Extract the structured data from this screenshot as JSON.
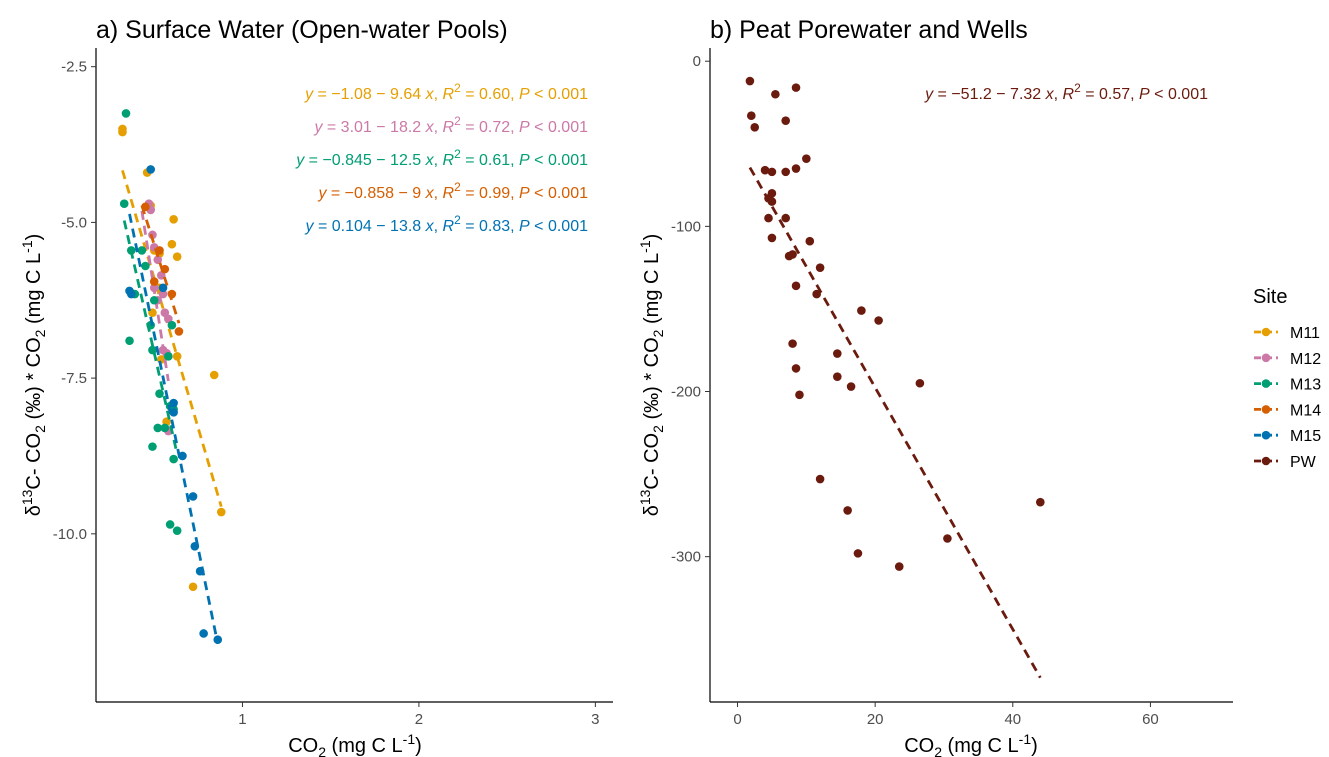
{
  "chart_data": [
    {
      "type": "scatter",
      "panel": "a",
      "title": "a) Surface Water (Open-water Pools)",
      "xlabel": "CO2 (mg C L-1)",
      "ylabel": "δ13C- CO2 (‰) * CO2 (mg C L-1)",
      "xlim": [
        0.17,
        3.1
      ],
      "ylim": [
        -12.7,
        -2.2
      ],
      "xticks": [
        1,
        2,
        3
      ],
      "xtick_labels": [
        "1",
        "2",
        "3"
      ],
      "yticks": [
        -2.5,
        -5.0,
        -7.5,
        -10.0
      ],
      "ytick_labels": [
        "-2.5",
        "-5.0",
        "-7.5",
        "-10.0"
      ],
      "grid": false,
      "series": [
        {
          "name": "M11",
          "color": "#E69F00",
          "points": [
            [
              0.32,
              -3.55
            ],
            [
              0.32,
              -3.5
            ],
            [
              0.46,
              -4.2
            ],
            [
              0.48,
              -4.73
            ],
            [
              0.61,
              -4.95
            ],
            [
              0.5,
              -5.45
            ],
            [
              0.53,
              -5.5
            ],
            [
              0.6,
              -5.35
            ],
            [
              0.63,
              -5.55
            ],
            [
              0.53,
              -6.05
            ],
            [
              0.49,
              -6.45
            ],
            [
              0.58,
              -7.15
            ],
            [
              0.54,
              -7.2
            ],
            [
              0.63,
              -7.15
            ],
            [
              0.84,
              -7.45
            ],
            [
              0.57,
              -8.2
            ],
            [
              0.72,
              -10.85
            ],
            [
              0.88,
              -9.65
            ]
          ],
          "fit": {
            "intercept": -1.08,
            "slope": -9.64,
            "x_range": [
              0.32,
              0.88
            ]
          },
          "equation": {
            "y_text": "y = −1.08 − 9.64 x, ",
            "r2_text": " = 0.60, ",
            "p_text": " < 0.001"
          }
        },
        {
          "name": "M12",
          "color": "#CC79A7",
          "points": [
            [
              0.47,
              -4.7
            ],
            [
              0.48,
              -4.8
            ],
            [
              0.49,
              -5.2
            ],
            [
              0.5,
              -5.4
            ],
            [
              0.52,
              -5.6
            ],
            [
              0.54,
              -5.85
            ],
            [
              0.5,
              -6.05
            ],
            [
              0.55,
              -6.15
            ],
            [
              0.52,
              -6.25
            ],
            [
              0.56,
              -6.45
            ],
            [
              0.58,
              -6.55
            ],
            [
              0.55,
              -7.05
            ],
            [
              0.57,
              -7.1
            ],
            [
              0.58,
              -8.35
            ]
          ],
          "fit": {
            "intercept": 3.01,
            "slope": -18.2,
            "x_range": [
              0.43,
              0.58
            ]
          },
          "equation": {
            "y_text": "y = 3.01 − 18.2 x, ",
            "r2_text": " = 0.72, ",
            "p_text": " < 0.001"
          }
        },
        {
          "name": "M13",
          "color": "#009E73",
          "points": [
            [
              0.34,
              -3.25
            ],
            [
              0.33,
              -4.7
            ],
            [
              0.37,
              -5.45
            ],
            [
              0.43,
              -5.45
            ],
            [
              0.45,
              -5.7
            ],
            [
              0.39,
              -6.15
            ],
            [
              0.36,
              -6.9
            ],
            [
              0.48,
              -6.65
            ],
            [
              0.5,
              -6.25
            ],
            [
              0.49,
              -7.05
            ],
            [
              0.53,
              -7.75
            ],
            [
              0.59,
              -7.95
            ],
            [
              0.61,
              -8.0
            ],
            [
              0.56,
              -8.3
            ],
            [
              0.52,
              -8.3
            ],
            [
              0.49,
              -8.6
            ],
            [
              0.61,
              -8.8
            ],
            [
              0.59,
              -9.85
            ],
            [
              0.63,
              -9.95
            ],
            [
              0.6,
              -6.65
            ],
            [
              0.58,
              -7.15
            ]
          ],
          "fit": {
            "intercept": -0.845,
            "slope": -12.5,
            "x_range": [
              0.33,
              0.63
            ]
          },
          "equation": {
            "y_text": "y = −0.845 − 12.5 x, ",
            "r2_text": " = 0.61, ",
            "p_text": " < 0.001"
          }
        },
        {
          "name": "M14",
          "color": "#D55E00",
          "points": [
            [
              0.45,
              -4.75
            ],
            [
              0.53,
              -5.45
            ],
            [
              0.56,
              -5.75
            ],
            [
              0.6,
              -6.15
            ],
            [
              0.64,
              -6.75
            ],
            [
              0.5,
              -5.95
            ]
          ],
          "fit": {
            "intercept": -0.858,
            "slope": -9,
            "x_range": [
              0.43,
              0.64
            ]
          },
          "equation": {
            "y_text": "y = −0.858 − 9 x, ",
            "r2_text": " = 0.99, ",
            "p_text": " < 0.001"
          }
        },
        {
          "name": "M15",
          "color": "#0072B2",
          "points": [
            [
              0.48,
              -4.15
            ],
            [
              0.36,
              -6.1
            ],
            [
              0.37,
              -6.15
            ],
            [
              0.55,
              -6.05
            ],
            [
              0.61,
              -7.9
            ],
            [
              0.61,
              -8.05
            ],
            [
              0.66,
              -8.75
            ],
            [
              0.72,
              -9.4
            ],
            [
              0.73,
              -10.2
            ],
            [
              0.76,
              -10.6
            ],
            [
              0.78,
              -11.6
            ],
            [
              0.86,
              -11.7
            ]
          ],
          "fit": {
            "intercept": 0.104,
            "slope": -13.8,
            "x_range": [
              0.36,
              0.86
            ]
          },
          "equation": {
            "y_text": "y = 0.104 − 13.8 x, ",
            "r2_text": " = 0.83, ",
            "p_text": " < 0.001"
          }
        }
      ]
    },
    {
      "type": "scatter",
      "panel": "b",
      "title": "b) Peat Porewater and Wells",
      "xlabel": "CO2 (mg C L-1)",
      "ylabel": "δ13C- CO2 (‰) * CO2 (mg C L-1)",
      "xlim": [
        -4,
        72
      ],
      "ylim": [
        -388,
        8
      ],
      "xticks": [
        0,
        20,
        40,
        60
      ],
      "xtick_labels": [
        "0",
        "20",
        "40",
        "60"
      ],
      "yticks": [
        0,
        -100,
        -200,
        -300
      ],
      "ytick_labels": [
        "0",
        "-100",
        "-200",
        "-300"
      ],
      "grid": false,
      "series": [
        {
          "name": "PW",
          "color": "#6B1A0E",
          "points": [
            [
              1.8,
              -12
            ],
            [
              8.5,
              -16
            ],
            [
              5.5,
              -20
            ],
            [
              2.0,
              -33
            ],
            [
              2.5,
              -40
            ],
            [
              7,
              -36
            ],
            [
              10,
              -59
            ],
            [
              8.5,
              -65
            ],
            [
              7,
              -67
            ],
            [
              4,
              -66
            ],
            [
              5,
              -67
            ],
            [
              5,
              -80
            ],
            [
              4.5,
              -83
            ],
            [
              5,
              -85
            ],
            [
              4.5,
              -95
            ],
            [
              7,
              -95
            ],
            [
              5,
              -107
            ],
            [
              10.5,
              -109
            ],
            [
              8,
              -117
            ],
            [
              7.5,
              -118
            ],
            [
              12,
              -125
            ],
            [
              11.5,
              -141
            ],
            [
              8.5,
              -136
            ],
            [
              18,
              -151
            ],
            [
              20.5,
              -157
            ],
            [
              8,
              -171
            ],
            [
              14.5,
              -177
            ],
            [
              8.5,
              -186
            ],
            [
              14.5,
              -191
            ],
            [
              16.5,
              -197
            ],
            [
              9,
              -202
            ],
            [
              26.5,
              -195
            ],
            [
              12,
              -253
            ],
            [
              16,
              -272
            ],
            [
              17.5,
              -298
            ],
            [
              23.5,
              -306
            ],
            [
              30.5,
              -289
            ],
            [
              44,
              -267
            ]
          ],
          "fit": {
            "intercept": -51.2,
            "slope": -7.32,
            "x_range": [
              1.8,
              44
            ]
          },
          "equation": {
            "y_text": "y = −51.2 − 7.32 x, ",
            "r2_text": " = 0.57, ",
            "p_text": " < 0.001"
          }
        }
      ]
    }
  ],
  "legend": {
    "title": "Site",
    "items": [
      {
        "label": "M11",
        "color": "#E69F00"
      },
      {
        "label": "M12",
        "color": "#CC79A7"
      },
      {
        "label": "M13",
        "color": "#009E73"
      },
      {
        "label": "M14",
        "color": "#D55E00"
      },
      {
        "label": "M15",
        "color": "#0072B2"
      },
      {
        "label": "PW",
        "color": "#6B1A0E"
      }
    ]
  }
}
